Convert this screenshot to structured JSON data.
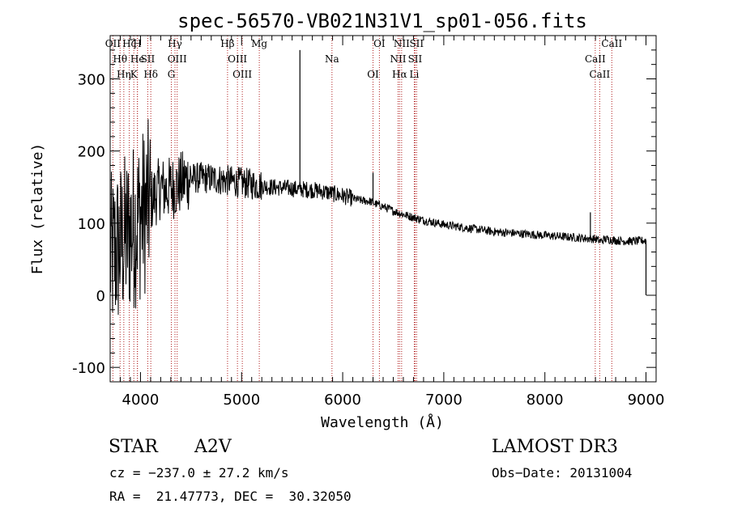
{
  "chart_data": {
    "type": "line",
    "title": "spec-56570-VB021N31V1_sp01-056.fits",
    "xlabel": "Wavelength (Å)",
    "ylabel": "Flux (relative)",
    "xlim": [
      3700,
      9100
    ],
    "ylim": [
      -120,
      360
    ],
    "x_ticks": [
      4000,
      5000,
      6000,
      7000,
      8000,
      9000
    ],
    "y_ticks": [
      -100,
      0,
      100,
      200,
      300
    ],
    "series": [
      {
        "name": "flux",
        "anchor_x": [
          3700,
          3750,
          3800,
          3850,
          3900,
          3950,
          4000,
          4050,
          4100,
          4150,
          4200,
          4250,
          4300,
          4350,
          4400,
          4450,
          4500,
          4600,
          4700,
          4800,
          4900,
          5000,
          5100,
          5200,
          5300,
          5400,
          5500,
          5560,
          5600,
          5700,
          5800,
          5900,
          6000,
          6100,
          6200,
          6280,
          6300,
          6400,
          6500,
          6600,
          6700,
          6800,
          6900,
          7000,
          7100,
          7200,
          7300,
          7400,
          7500,
          7600,
          7700,
          7800,
          7900,
          8000,
          8100,
          8200,
          8300,
          8400,
          8500,
          8550,
          8600,
          8700,
          8800,
          8900,
          9000
        ],
        "anchor_y": [
          50,
          60,
          70,
          80,
          90,
          100,
          110,
          120,
          130,
          140,
          150,
          145,
          150,
          150,
          155,
          160,
          162,
          163,
          162,
          160,
          158,
          156,
          154,
          152,
          150,
          149,
          148,
          147,
          147,
          146,
          144,
          141,
          138,
          134,
          131,
          130,
          128,
          123,
          117,
          112,
          108,
          104,
          101,
          98,
          96,
          94,
          92,
          90,
          88,
          87,
          86,
          85,
          84,
          83,
          82,
          81,
          80,
          79,
          78,
          75,
          78,
          76,
          75,
          75,
          76
        ],
        "noise_by_range": [
          {
            "x": [
              3700,
              4100
            ],
            "amp": 120
          },
          {
            "x": [
              4100,
              4500
            ],
            "amp": 45
          },
          {
            "x": [
              4500,
              5200
            ],
            "amp": 22
          },
          {
            "x": [
              5200,
              6100
            ],
            "amp": 12
          },
          {
            "x": [
              6100,
              9000
            ],
            "amp": 6
          }
        ],
        "features": [
          {
            "x": 5577,
            "y": 340
          },
          {
            "x": 6300,
            "y": 170
          },
          {
            "x": 8450,
            "y": 115
          },
          {
            "x": 9000,
            "y": 0
          }
        ]
      }
    ],
    "spectral_lines": [
      {
        "label": "OII",
        "wavelength": 3727
      },
      {
        "label": "Hθ",
        "wavelength": 3798
      },
      {
        "label": "Hη",
        "wavelength": 3835
      },
      {
        "label": "Hζ",
        "wavelength": 3889
      },
      {
        "label": "He",
        "wavelength": 3970
      },
      {
        "label": "K",
        "wavelength": 3934
      },
      {
        "label": "H",
        "wavelength": 3969
      },
      {
        "label": "SII",
        "wavelength": 4072
      },
      {
        "label": "Hδ",
        "wavelength": 4102
      },
      {
        "label": "Hγ",
        "wavelength": 4341
      },
      {
        "label": "OIII",
        "wavelength": 4363
      },
      {
        "label": "G",
        "wavelength": 4305
      },
      {
        "label": "Hβ",
        "wavelength": 4861
      },
      {
        "label": "OIII",
        "wavelength": 4959
      },
      {
        "label": "OIII",
        "wavelength": 5007
      },
      {
        "label": "Mg",
        "wavelength": 5175
      },
      {
        "label": "Na",
        "wavelength": 5894
      },
      {
        "label": "OI",
        "wavelength": 6300
      },
      {
        "label": "OI",
        "wavelength": 6363
      },
      {
        "label": "NII",
        "wavelength": 6548
      },
      {
        "label": "Hα",
        "wavelength": 6563
      },
      {
        "label": "NII",
        "wavelength": 6583
      },
      {
        "label": "SII",
        "wavelength": 6716
      },
      {
        "label": "Li",
        "wavelength": 6708
      },
      {
        "label": "SII",
        "wavelength": 6731
      },
      {
        "label": "CaII",
        "wavelength": 8498
      },
      {
        "label": "CaII",
        "wavelength": 8542
      },
      {
        "label": "CaII",
        "wavelength": 8662
      }
    ]
  },
  "info": {
    "object_class": "STAR",
    "subclass": "A2V",
    "survey": "LAMOST DR3",
    "cz": "cz = −237.0 ± 27.2 km/s",
    "obs_date": "Obs−Date: 20131004",
    "coords": "RA =  21.47773, DEC =  30.32050"
  },
  "colors": {
    "axis": "#000000",
    "spectrum": "#000000",
    "line_marker": "#b22222"
  }
}
